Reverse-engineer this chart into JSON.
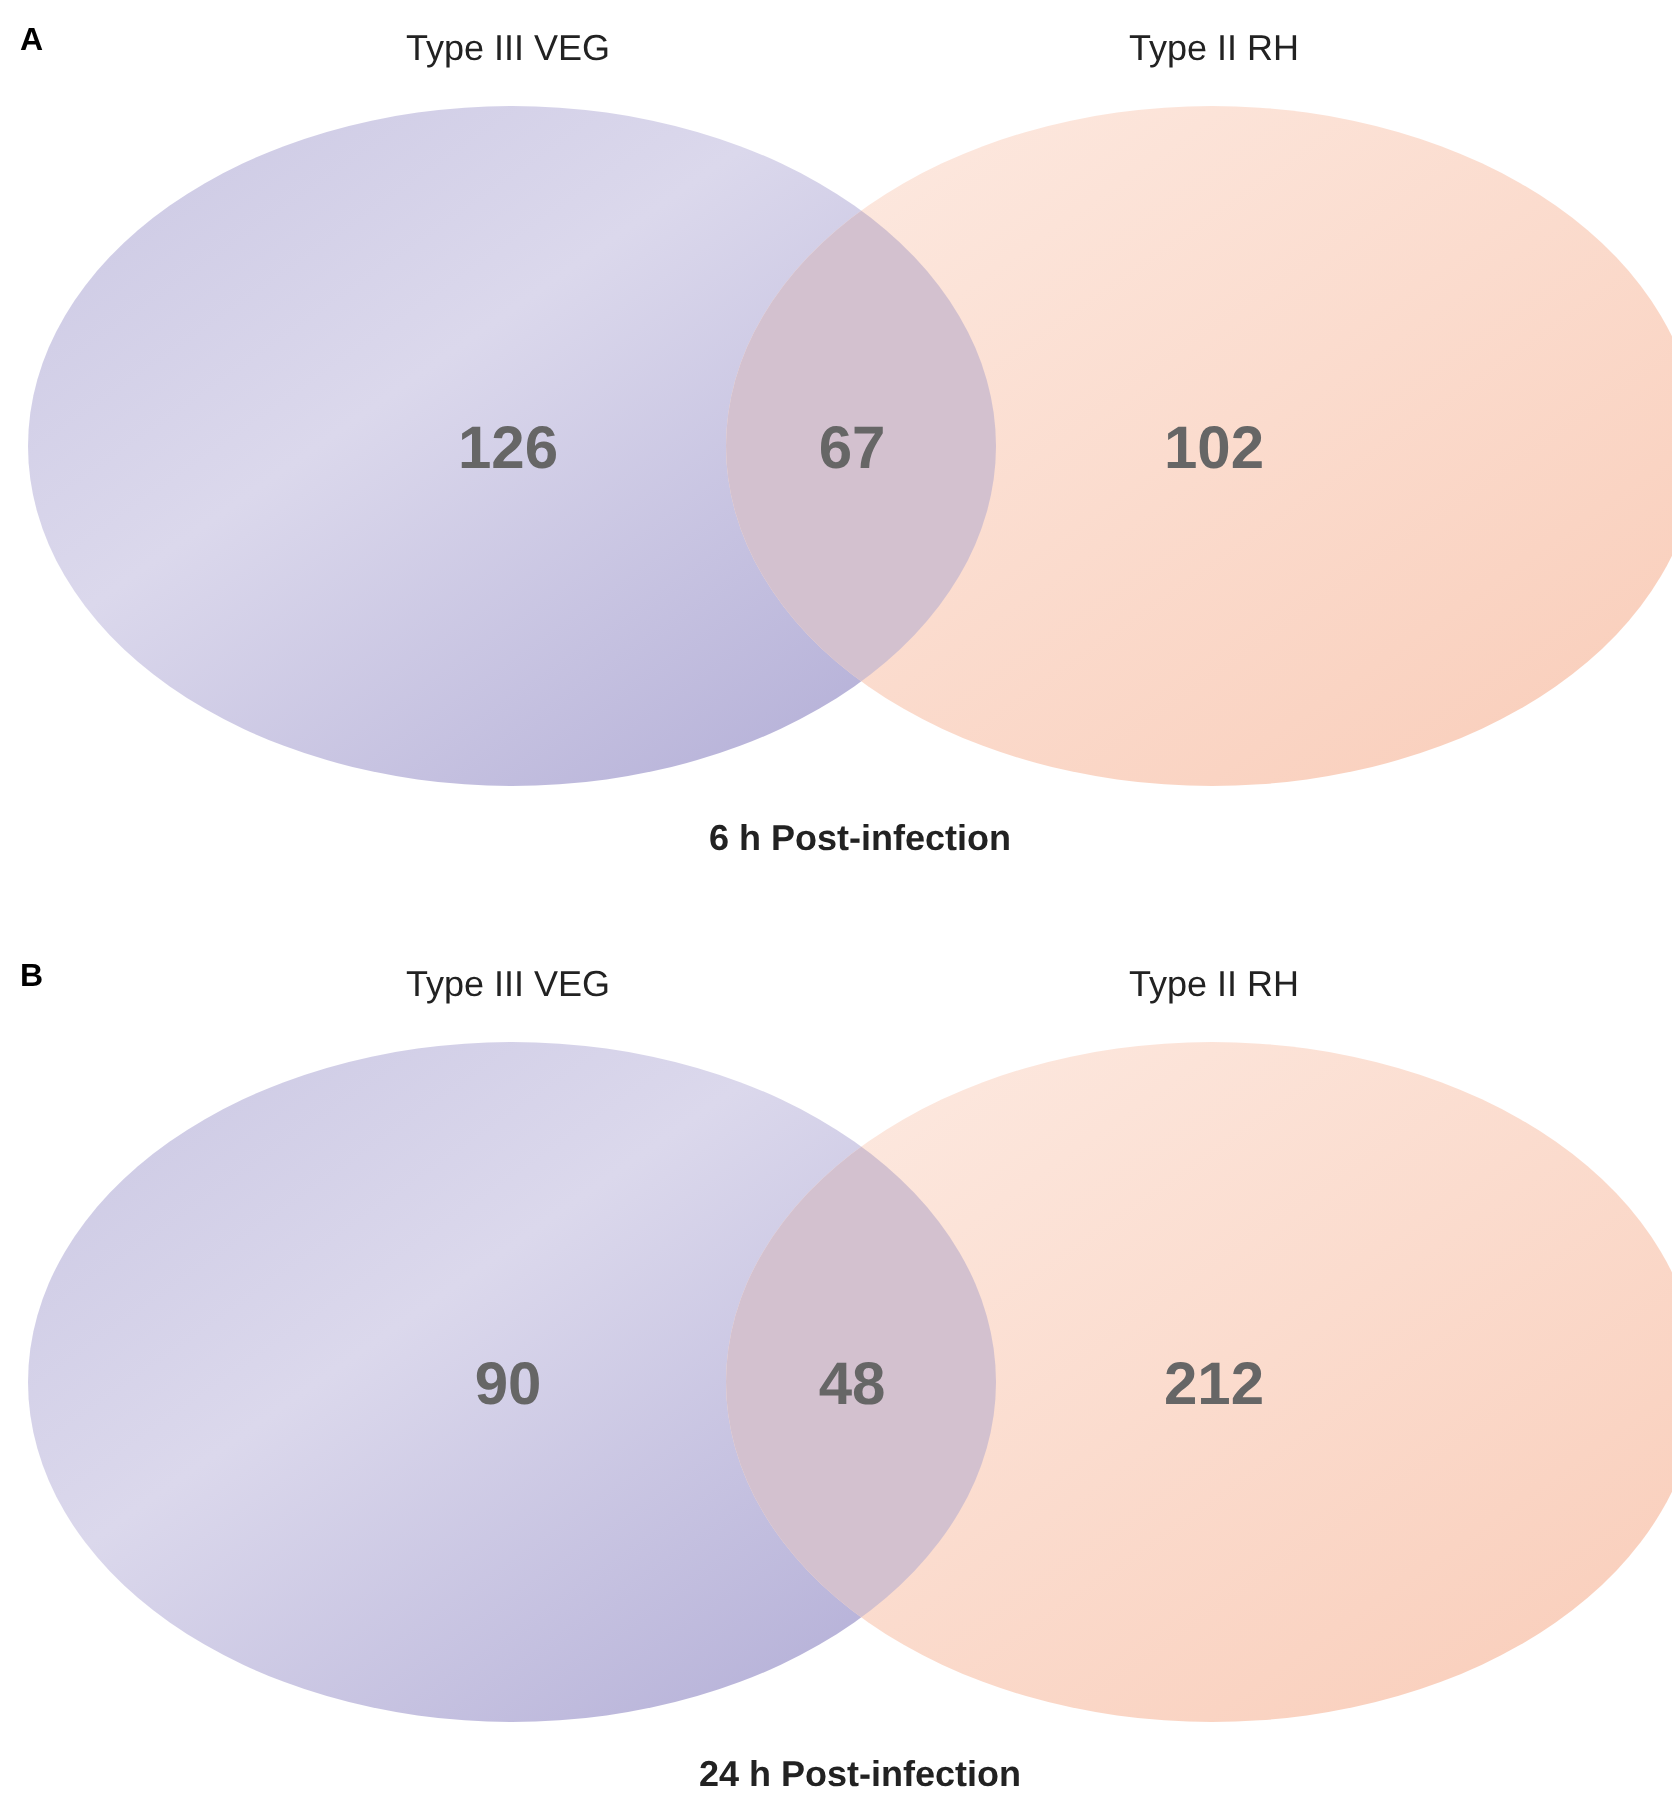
{
  "chart_data": [
    {
      "type": "other",
      "title": "6 h Post-infection",
      "annotations": [
        "A"
      ],
      "categories": [
        "Type III VEG",
        null,
        "Type II RH"
      ],
      "values": [
        126,
        67,
        102
      ],
      "data_labels": true,
      "colors": [
        "#aea9d4",
        "#d3c1cf",
        "#f9ccb8"
      ]
    },
    {
      "type": "other",
      "title": "24 h Post-infection",
      "annotations": [
        "B"
      ],
      "categories": [
        "Type III VEG",
        null,
        "Type II RH"
      ],
      "values": [
        90,
        48,
        212
      ],
      "data_labels": true,
      "colors": [
        "#aea9d4",
        "#d3c1cf",
        "#f9ccb8"
      ]
    }
  ]
}
